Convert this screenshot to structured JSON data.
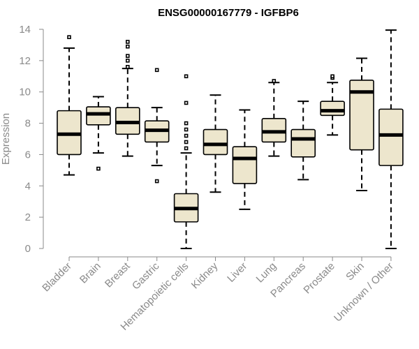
{
  "chart_data": {
    "type": "boxplot",
    "title": "ENSG00000167779 - IGFBP6",
    "xlabel": "",
    "ylabel": "Expression",
    "ylim": [
      0,
      14
    ],
    "yticks": [
      "0",
      "2",
      "4",
      "6",
      "8",
      "10",
      "12",
      "14"
    ],
    "box_color": "#ede6cd",
    "categories": [
      "Bladder",
      "Brain",
      "Breast",
      "Gastric",
      "Hematopoietic cells",
      "Kidney",
      "Liver",
      "Lung",
      "Pancreas",
      "Prostate",
      "Skin",
      "Unknown / Other"
    ],
    "series": [
      {
        "name": "Bladder",
        "whisker_low": 4.7,
        "q1": 6.0,
        "median": 7.3,
        "q3": 8.8,
        "whisker_high": 12.8,
        "outliers": [
          13.5
        ]
      },
      {
        "name": "Brain",
        "whisker_low": 6.1,
        "q1": 7.9,
        "median": 8.6,
        "q3": 9.05,
        "whisker_high": 9.7,
        "outliers": [
          5.1
        ]
      },
      {
        "name": "Breast",
        "whisker_low": 5.9,
        "q1": 7.3,
        "median": 8.05,
        "q3": 9.0,
        "whisker_high": 11.5,
        "outliers": [
          11.6,
          12.0,
          12.3,
          12.9,
          13.2
        ]
      },
      {
        "name": "Gastric",
        "whisker_low": 5.3,
        "q1": 6.8,
        "median": 7.55,
        "q3": 8.15,
        "whisker_high": 9.0,
        "outliers": [
          4.3,
          11.4
        ]
      },
      {
        "name": "Hematopoietic cells",
        "whisker_low": 0.0,
        "q1": 1.7,
        "median": 2.55,
        "q3": 3.5,
        "whisker_high": 6.1,
        "outliers": [
          6.4,
          6.8,
          7.2,
          7.6,
          8.0,
          9.3,
          11.0
        ]
      },
      {
        "name": "Kidney",
        "whisker_low": 3.6,
        "q1": 6.0,
        "median": 6.65,
        "q3": 7.6,
        "whisker_high": 9.8,
        "outliers": []
      },
      {
        "name": "Liver",
        "whisker_low": 2.5,
        "q1": 4.15,
        "median": 5.75,
        "q3": 6.5,
        "whisker_high": 8.85,
        "outliers": []
      },
      {
        "name": "Lung",
        "whisker_low": 5.9,
        "q1": 6.8,
        "median": 7.45,
        "q3": 8.3,
        "whisker_high": 10.6,
        "outliers": [
          10.7
        ]
      },
      {
        "name": "Pancreas",
        "whisker_low": 4.4,
        "q1": 5.85,
        "median": 7.0,
        "q3": 7.6,
        "whisker_high": 9.4,
        "outliers": []
      },
      {
        "name": "Prostate",
        "whisker_low": 7.25,
        "q1": 8.5,
        "median": 8.8,
        "q3": 9.4,
        "whisker_high": 10.6,
        "outliers": [
          10.9,
          11.0
        ]
      },
      {
        "name": "Skin",
        "whisker_low": 3.7,
        "q1": 6.3,
        "median": 10.0,
        "q3": 10.75,
        "whisker_high": 12.15,
        "outliers": []
      },
      {
        "name": "Unknown / Other",
        "whisker_low": 0.0,
        "q1": 5.3,
        "median": 7.25,
        "q3": 8.9,
        "whisker_high": 13.95,
        "outliers": []
      }
    ]
  }
}
